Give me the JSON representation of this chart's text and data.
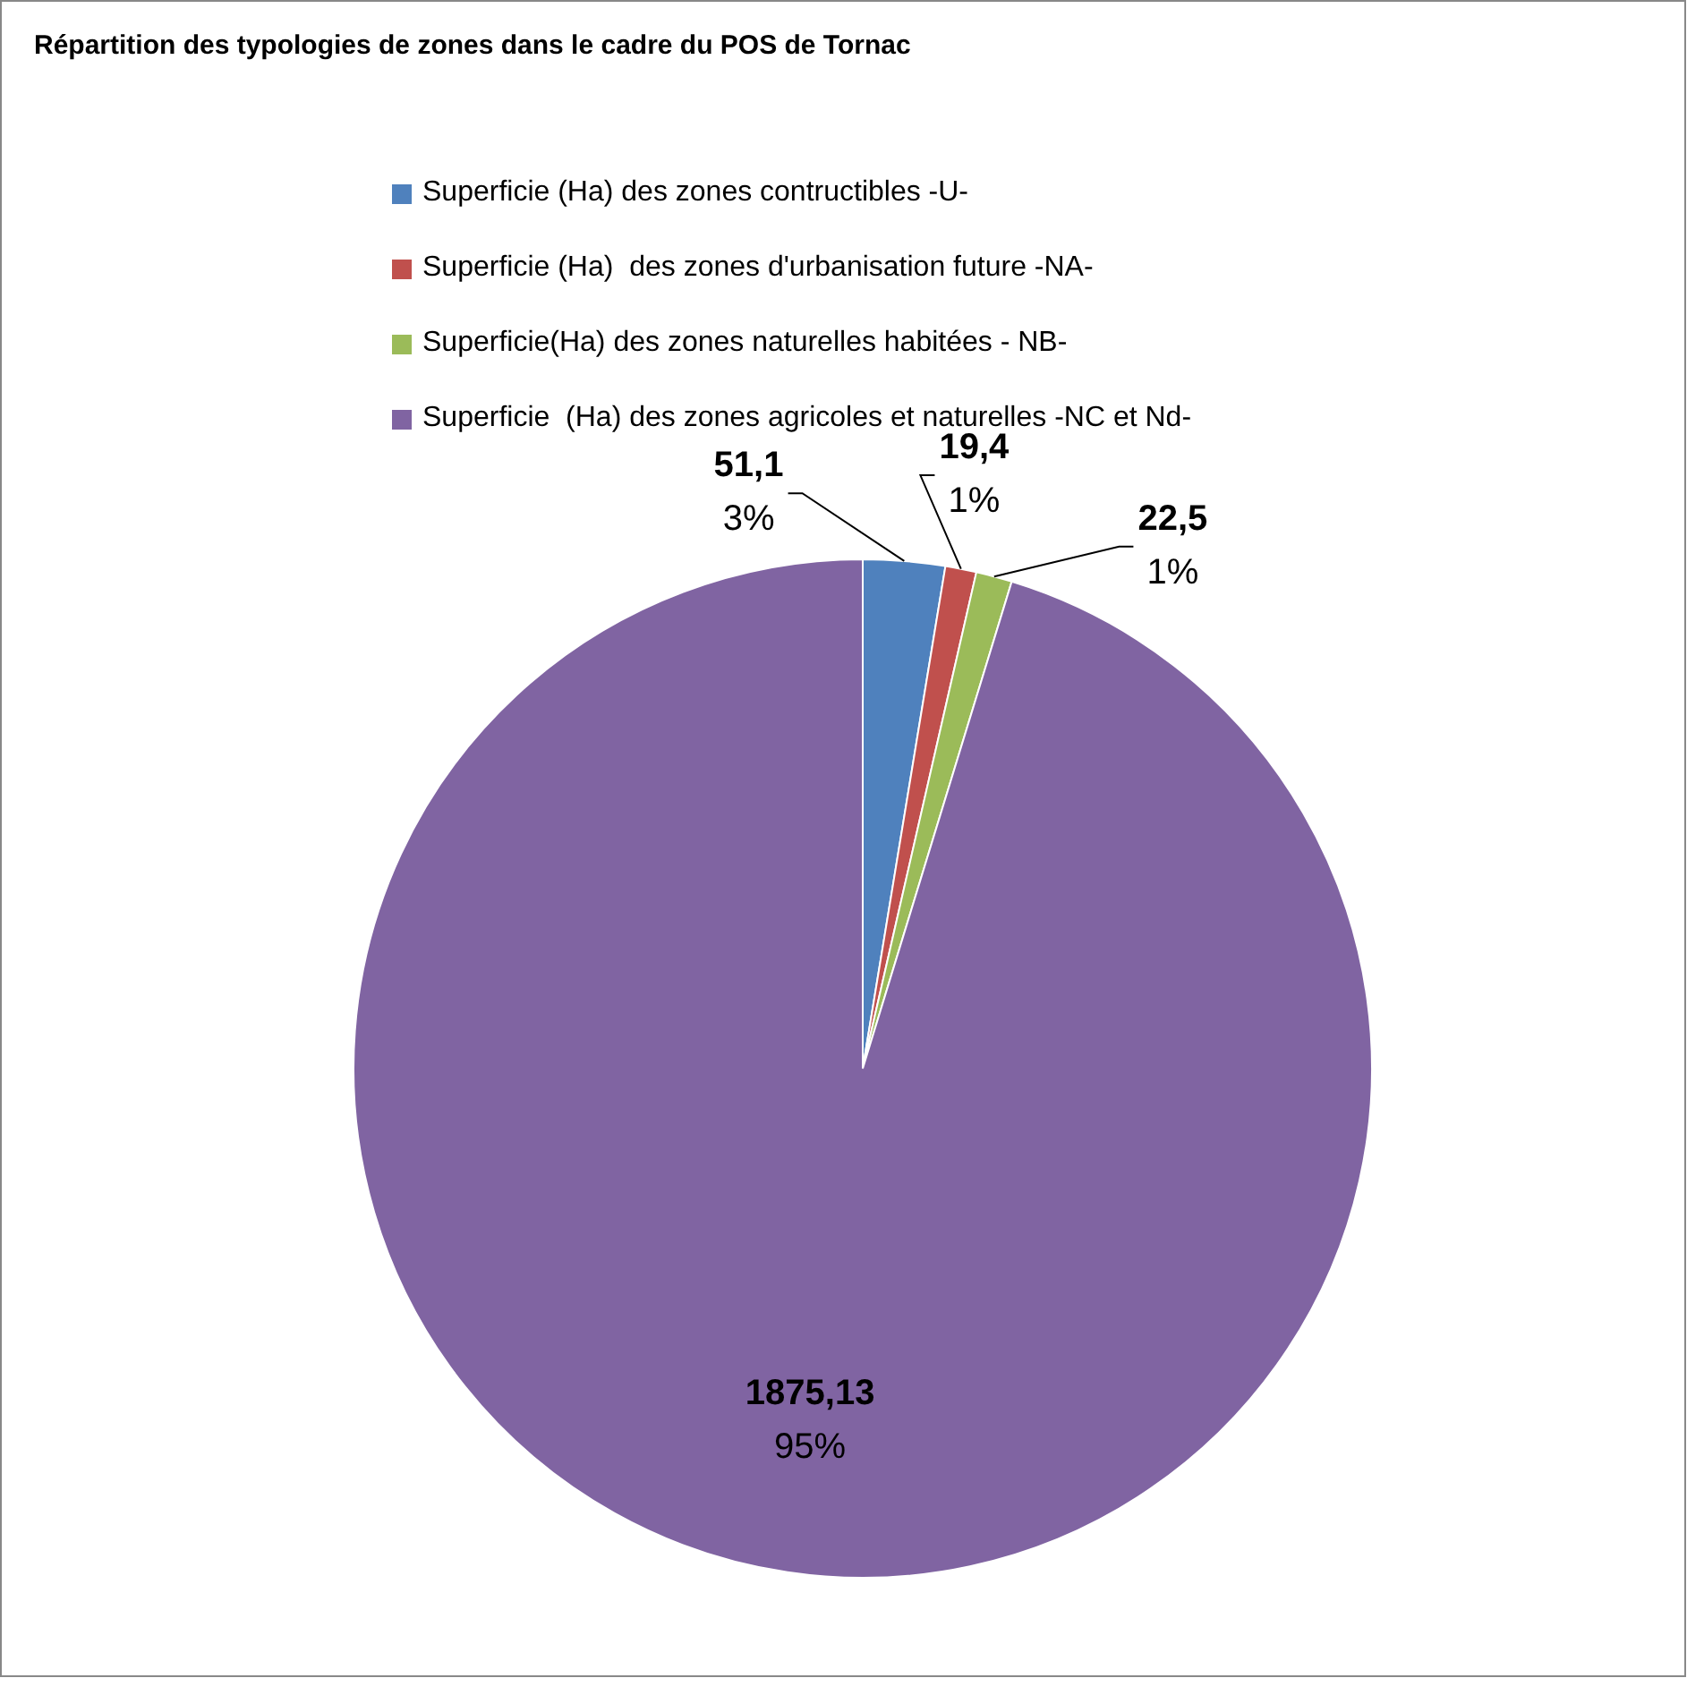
{
  "chart_data": {
    "type": "pie",
    "title": "Répartition des typologies de zones dans le cadre du POS de Tornac",
    "categories": [
      "Superficie (Ha) des zones contructibles -U-",
      "Superficie (Ha)  des zones d'urbanisation future -NA-",
      "Superficie(Ha) des zones naturelles habitées - NB-",
      "Superficie  (Ha) des zones agricoles et naturelles -NC et Nd-"
    ],
    "values": [
      51.1,
      19.4,
      22.5,
      1875.13
    ],
    "colors": [
      "#4f81bd",
      "#c0504d",
      "#9bbb59",
      "#8064a2"
    ],
    "value_labels": [
      "51,1\n3%",
      "19,4\n1%",
      "22,5\n1%",
      "1875,13\n95%"
    ],
    "legend": "top"
  }
}
